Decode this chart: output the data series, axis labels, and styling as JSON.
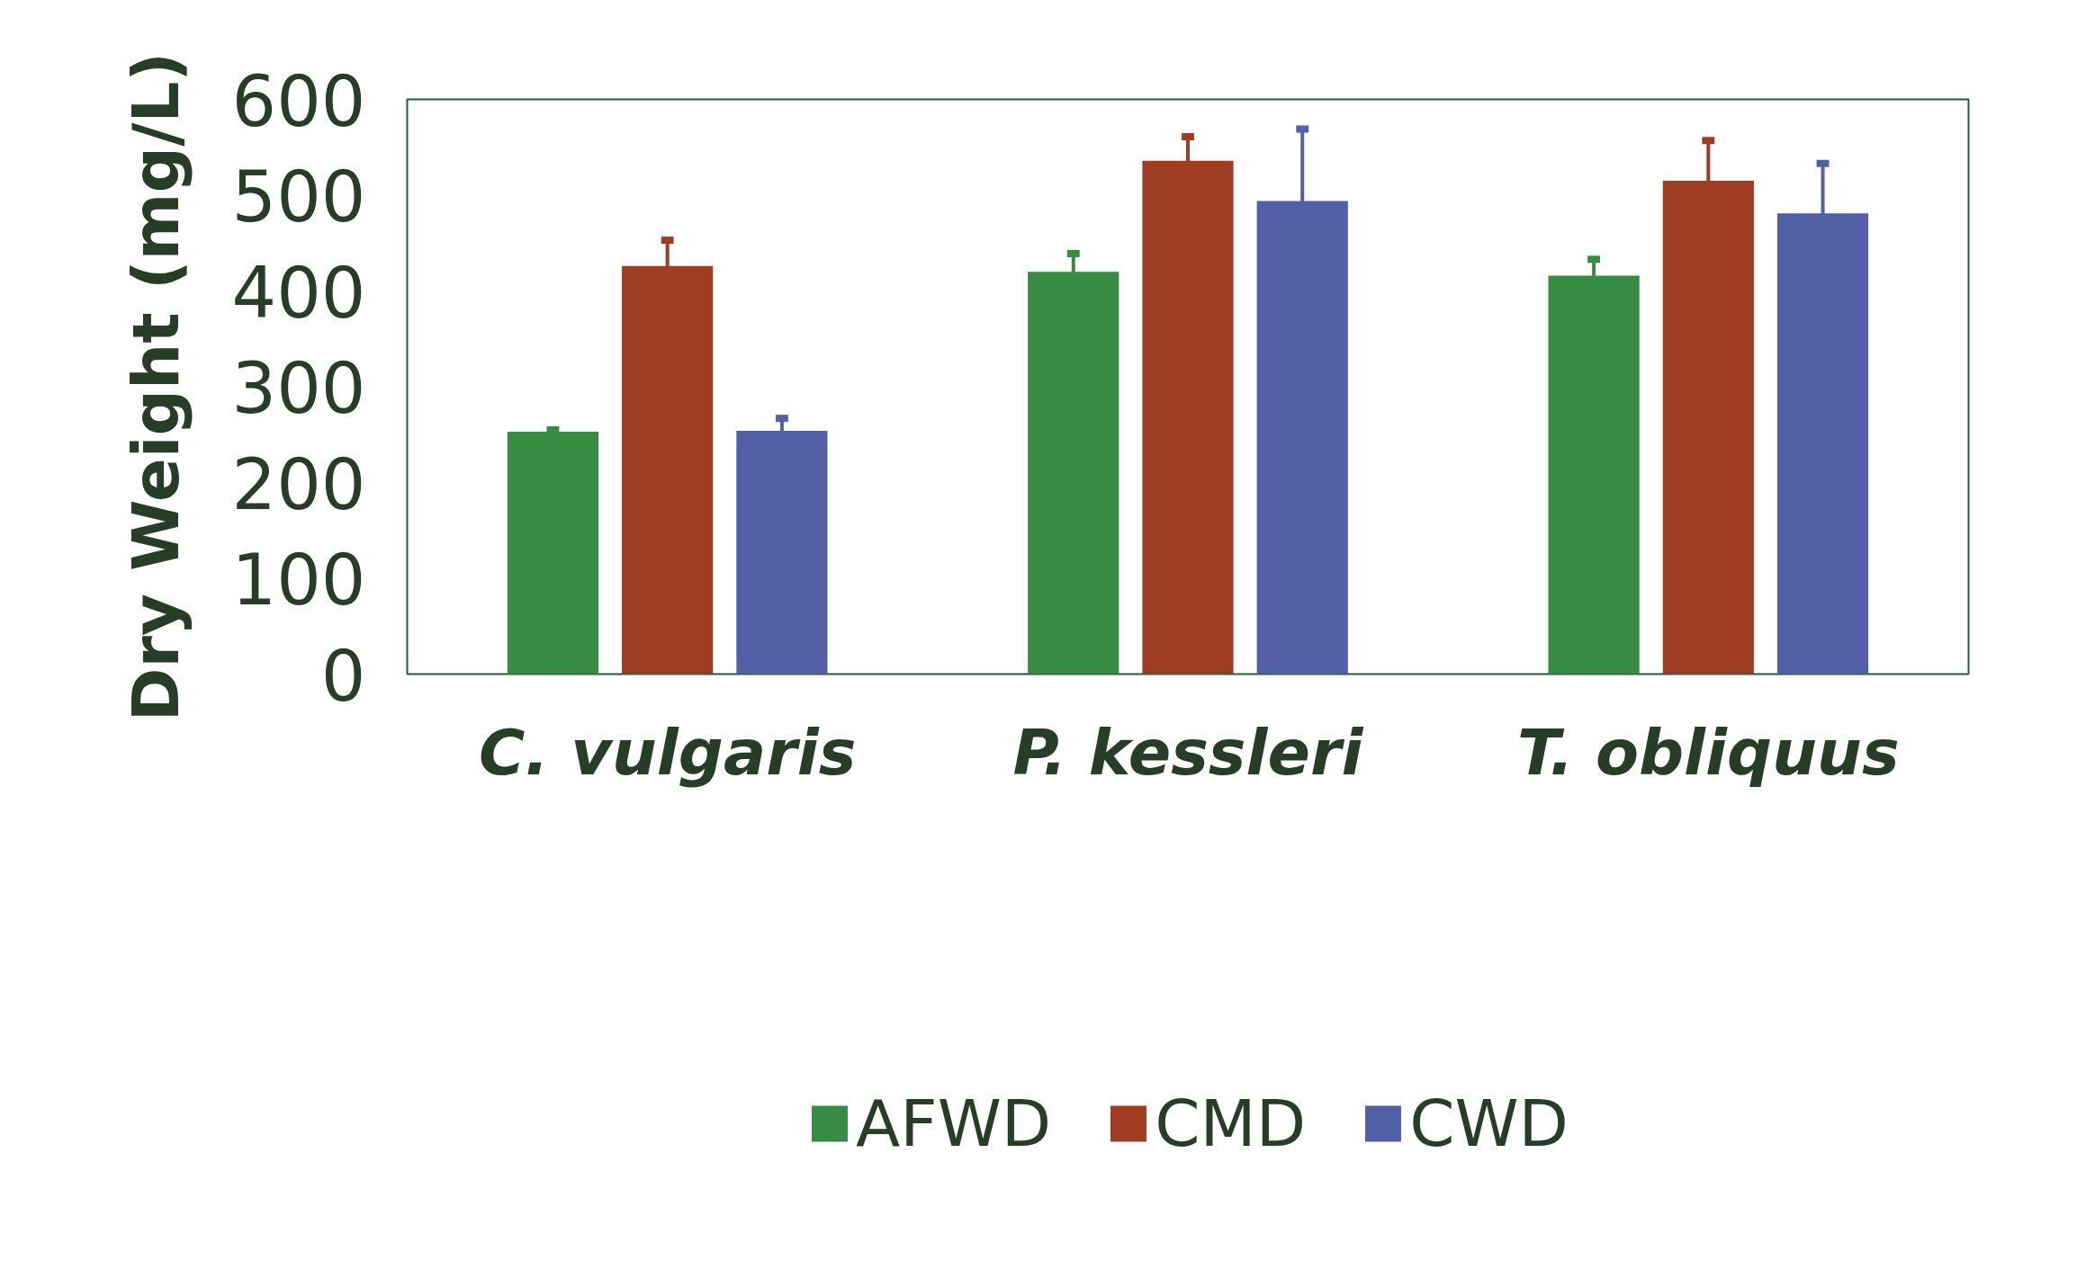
{
  "chart_data": {
    "type": "bar",
    "ylabel": "Dry Weight (mg/L)",
    "categories": [
      "C. vulgaris",
      "P. kessleri",
      "T. obliquus"
    ],
    "series": [
      {
        "name": "AFWD",
        "color": "#378b43",
        "values": [
          253,
          420,
          416
        ],
        "errors": [
          2,
          19,
          17
        ]
      },
      {
        "name": "CMD",
        "color": "#9e3d22",
        "values": [
          426,
          536,
          515
        ],
        "errors": [
          27,
          25,
          42
        ]
      },
      {
        "name": "CWD",
        "color": "#5360a8",
        "values": [
          254,
          494,
          481
        ],
        "errors": [
          13,
          75,
          52
        ]
      }
    ],
    "ylim": [
      0,
      600
    ],
    "yticks": [
      0,
      100,
      200,
      300,
      400,
      500,
      600
    ],
    "grid": false,
    "legend": "bottom"
  }
}
